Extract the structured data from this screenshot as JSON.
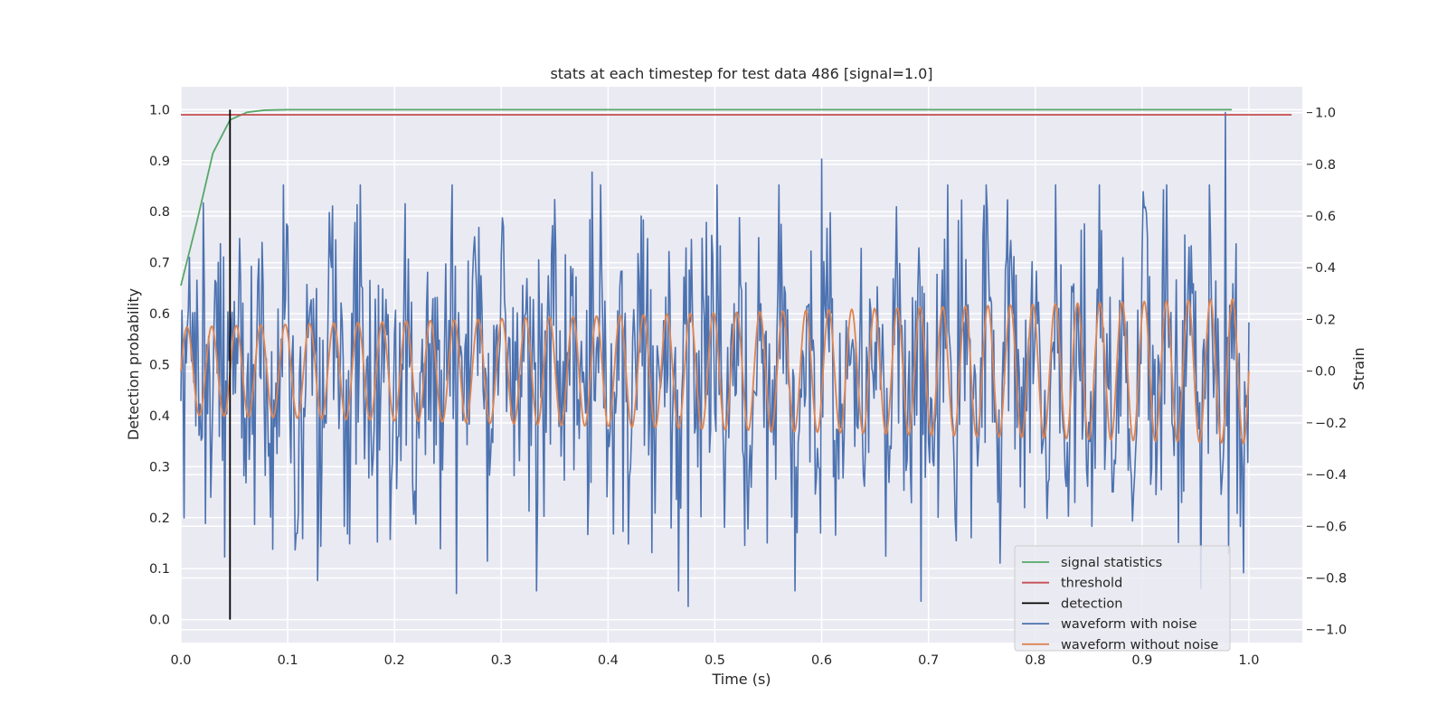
{
  "chart_data": {
    "type": "line",
    "title": "stats at each timestep for test data 486 [signal=1.0]",
    "xlabel": "Time (s)",
    "ylabel_left": "Detection probability",
    "ylabel_right": "Strain",
    "xlim": [
      0.0,
      1.05
    ],
    "ylim_left": [
      -0.045,
      1.045
    ],
    "ylim_right": [
      -1.05,
      1.1
    ],
    "x_ticks": [
      "0.0",
      "0.1",
      "0.2",
      "0.3",
      "0.4",
      "0.5",
      "0.6",
      "0.7",
      "0.8",
      "0.9",
      "1.0"
    ],
    "y_left_ticks": [
      "0.0",
      "0.1",
      "0.2",
      "0.3",
      "0.4",
      "0.5",
      "0.6",
      "0.7",
      "0.8",
      "0.9",
      "1.0"
    ],
    "y_right_ticks": [
      "−1.0",
      "−0.8",
      "−0.6",
      "−0.4",
      "−0.2",
      "0.0",
      "0.2",
      "0.4",
      "0.6",
      "0.8",
      "1.0"
    ],
    "grid": true,
    "legend_position": "lower-right",
    "legend": [
      "signal statistics",
      "threshold",
      "detection",
      "waveform with noise",
      "waveform without noise"
    ],
    "series": [
      {
        "name": "signal statistics",
        "axis": "left",
        "color": "#55a868",
        "x": [
          0.0,
          0.015,
          0.03,
          0.046,
          0.062,
          0.078,
          0.1,
          0.3,
          0.5,
          0.7,
          0.9,
          0.984
        ],
        "y": [
          0.655,
          0.78,
          0.915,
          0.98,
          0.995,
          0.999,
          1.0,
          1.0,
          1.0,
          1.0,
          1.0,
          1.0
        ]
      },
      {
        "name": "threshold",
        "axis": "left",
        "color": "#c44e52",
        "x": [
          0.0,
          1.04
        ],
        "y": [
          0.99,
          0.99
        ]
      },
      {
        "name": "detection",
        "axis": "left",
        "color": "#000000",
        "x": [
          0.046,
          0.046
        ],
        "y": [
          0.0,
          1.0
        ]
      },
      {
        "name": "waveform with noise",
        "axis": "right",
        "color": "#4c72b0",
        "x_range": [
          0.0,
          1.0
        ],
        "noise_amplitude": 0.62,
        "peaks": [
          {
            "x": 0.385,
            "y": 0.77
          },
          {
            "x": 0.6,
            "y": 0.82
          },
          {
            "x": 0.978,
            "y": 1.0
          },
          {
            "x": 0.475,
            "y": -0.91
          },
          {
            "x": 0.258,
            "y": -0.86
          },
          {
            "x": 0.693,
            "y": -0.89
          },
          {
            "x": 0.128,
            "y": -0.81
          },
          {
            "x": 0.955,
            "y": -0.84
          }
        ]
      },
      {
        "name": "waveform without noise",
        "axis": "right",
        "color": "#dd8452",
        "x_range": [
          0.0,
          1.0
        ],
        "cycles": 46,
        "amplitude_start": 0.17,
        "amplitude_end": 0.28
      }
    ]
  }
}
